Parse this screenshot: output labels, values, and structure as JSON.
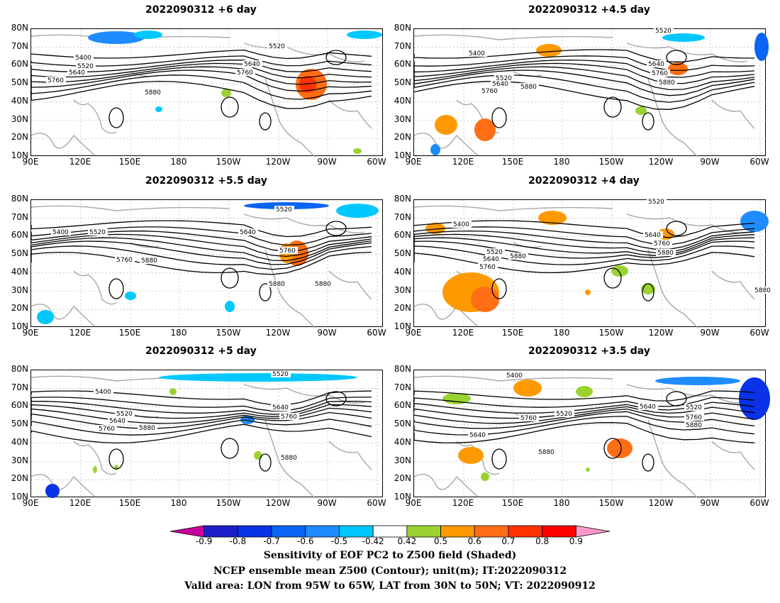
{
  "panels": [
    {
      "title": "2022090312 +6 day"
    },
    {
      "title": "2022090312 +4.5 day"
    },
    {
      "title": "2022090312 +5.5 day"
    },
    {
      "title": "2022090312 +4 day"
    },
    {
      "title": "2022090312 +5 day"
    },
    {
      "title": "2022090312 +3.5 day"
    }
  ],
  "axes": {
    "lat_labels": [
      "80N",
      "70N",
      "60N",
      "50N",
      "40N",
      "30N",
      "20N",
      "10N"
    ],
    "lon_labels": [
      "90E",
      "120E",
      "150E",
      "180",
      "150W",
      "120W",
      "90W",
      "60W"
    ]
  },
  "contour_labels": {
    "p0": [
      "5400",
      "5520",
      "5640",
      "5760",
      "5520",
      "5640",
      "5760",
      "5880"
    ],
    "p1": [
      "5520",
      "5400",
      "5520",
      "5640",
      "5760",
      "5880",
      "5640",
      "5760",
      "5880"
    ],
    "p2": [
      "5400",
      "5520",
      "5520",
      "5760",
      "5880",
      "5640",
      "5760",
      "5880",
      "5880"
    ],
    "p3": [
      "5520",
      "5400",
      "5520",
      "5640",
      "5760",
      "5880",
      "5640",
      "5760",
      "5880",
      "5880"
    ],
    "p4": [
      "5400",
      "5520",
      "5640",
      "5760",
      "5880",
      "5520",
      "5640",
      "5760",
      "5880"
    ],
    "p5": [
      "5400",
      "5640",
      "5760",
      "5520",
      "5880",
      "5640",
      "5520",
      "5760",
      "5880"
    ]
  },
  "colorbar": {
    "labels": [
      "-0.9",
      "-0.8",
      "-0.7",
      "-0.6",
      "-0.5",
      "-0.42",
      "0.42",
      "0.5",
      "0.6",
      "0.7",
      "0.8",
      "0.9"
    ],
    "colors": [
      "#c8009a",
      "#1e1ec8",
      "#0a32e6",
      "#0a64f5",
      "#1e8cff",
      "#00c8ff",
      "#ffffff",
      "#9bd232",
      "#ff9900",
      "#ff6e14",
      "#ff3200",
      "#ff0000",
      "#ff99cc"
    ]
  },
  "caption": {
    "line1": "Sensitivity of EOF PC2 to Z500 field (Shaded)",
    "line2": "NCEP ensemble mean Z500 (Contour); unit(m); IT:2022090312",
    "line3": "Valid area: LON from 95W to 65W, LAT from 30N to 50N; VT: 2022090912"
  }
}
